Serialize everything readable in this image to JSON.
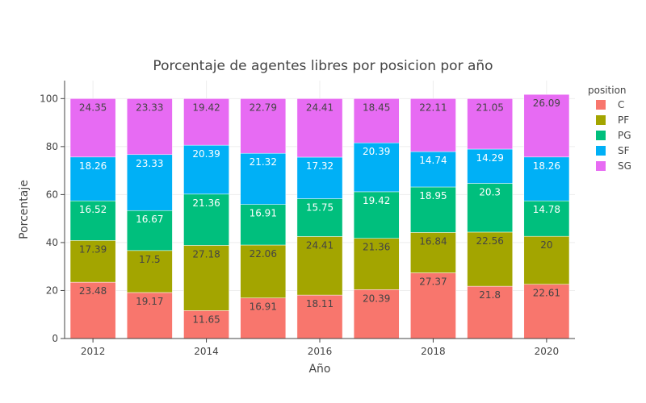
{
  "chart_data": {
    "type": "bar",
    "stacked": true,
    "title": "Porcentaje de agentes libres por posicion por año",
    "xlabel": "Año",
    "ylabel": "Porcentaje",
    "ylim": [
      0,
      107.5
    ],
    "y_ticks": [
      0,
      20,
      40,
      60,
      80,
      100
    ],
    "x_ticks": [
      2012,
      2014,
      2016,
      2018,
      2020
    ],
    "grid": true,
    "legend_title": "position",
    "legend_placement": "top-right",
    "categories": [
      2012,
      2013,
      2014,
      2015,
      2016,
      2017,
      2018,
      2019,
      2020
    ],
    "series": [
      {
        "name": "C",
        "color": "#F8766D",
        "label_color": "#444444",
        "values": [
          23.48,
          19.17,
          11.65,
          16.91,
          18.11,
          20.39,
          27.37,
          21.8,
          22.61
        ]
      },
      {
        "name": "PF",
        "color": "#A3A500",
        "label_color": "#444444",
        "values": [
          17.39,
          17.5,
          27.18,
          22.06,
          24.41,
          21.36,
          16.84,
          22.56,
          20
        ]
      },
      {
        "name": "PG",
        "color": "#00BF7D",
        "label_color": "#ffffff",
        "values": [
          16.52,
          16.67,
          21.36,
          16.91,
          15.75,
          19.42,
          18.95,
          20.3,
          14.78
        ]
      },
      {
        "name": "SF",
        "color": "#00B0F6",
        "label_color": "#ffffff",
        "values": [
          18.26,
          23.33,
          20.39,
          21.32,
          17.32,
          20.39,
          14.74,
          14.29,
          18.26
        ]
      },
      {
        "name": "SG",
        "color": "#E76BF3",
        "label_color": "#444444",
        "values": [
          24.35,
          23.33,
          19.42,
          22.79,
          24.41,
          18.45,
          22.11,
          21.05,
          26.09
        ]
      }
    ]
  }
}
